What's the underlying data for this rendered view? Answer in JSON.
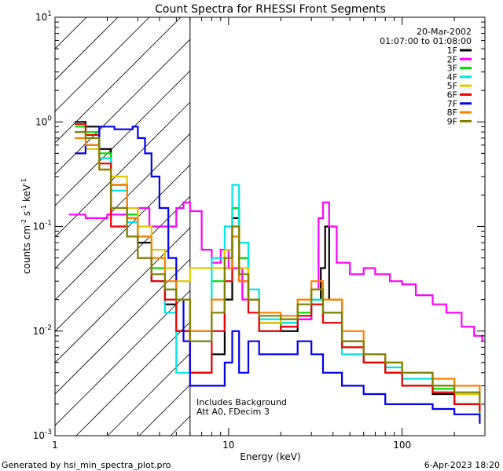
{
  "chart_data": {
    "type": "line",
    "title": "Count Spectra for RHESSI Front Segments",
    "xlabel": "Energy (keV)",
    "ylabel_main": "counts cm",
    "ylabel_exp1": "-2",
    "ylabel_mid": " s",
    "ylabel_exp2": "-1",
    "ylabel_end": " keV",
    "ylabel_exp3": "-1",
    "x_scale": "log",
    "y_scale": "log",
    "xlim": [
      1,
      300
    ],
    "ylim": [
      0.001,
      10
    ],
    "x_ticks": [
      {
        "value": 1,
        "label": "1"
      },
      {
        "value": 10,
        "label": "10"
      },
      {
        "value": 100,
        "label": "100"
      }
    ],
    "y_ticks": [
      {
        "value": 0.001,
        "base": "10",
        "exp": "-3"
      },
      {
        "value": 0.01,
        "base": "10",
        "exp": "-2"
      },
      {
        "value": 0.1,
        "base": "10",
        "exp": "-1"
      },
      {
        "value": 1,
        "base": "10",
        "exp": "0"
      },
      {
        "value": 10,
        "base": "10",
        "exp": "1"
      }
    ],
    "date": "20-Mar-2002",
    "time_range": "01:07:00 to 01:08:00",
    "hatched_region_kev": [
      1,
      6
    ],
    "annotations": [
      "Includes Background",
      "Att A0, FDecim 3"
    ],
    "legend_position": "top-right",
    "series": [
      {
        "name": "1F",
        "color": "#000000",
        "values": [
          [
            1.3,
            1.0
          ],
          [
            1.5,
            0.9
          ],
          [
            1.8,
            0.55
          ],
          [
            2.1,
            0.25
          ],
          [
            2.6,
            0.12
          ],
          [
            3.0,
            0.07
          ],
          [
            3.6,
            0.03
          ],
          [
            4.3,
            0.018
          ],
          [
            5.0,
            0.01
          ],
          [
            6.0,
            0.004
          ],
          [
            8.0,
            0.006
          ],
          [
            9.5,
            0.02
          ],
          [
            10.5,
            0.12
          ],
          [
            11.5,
            0.05
          ],
          [
            13,
            0.02
          ],
          [
            15,
            0.012
          ],
          [
            20,
            0.01
          ],
          [
            25,
            0.013
          ],
          [
            30,
            0.02
          ],
          [
            34,
            0.04
          ],
          [
            36,
            0.1
          ],
          [
            38,
            0.02
          ],
          [
            45,
            0.008
          ],
          [
            60,
            0.005
          ],
          [
            80,
            0.004
          ],
          [
            100,
            0.003
          ],
          [
            150,
            0.0025
          ],
          [
            200,
            0.002
          ],
          [
            280,
            0.0015
          ]
        ]
      },
      {
        "name": "2F",
        "color": "#ff00ff",
        "values": [
          [
            1.2,
            0.13
          ],
          [
            1.5,
            0.12
          ],
          [
            2.0,
            0.13
          ],
          [
            3.0,
            0.15
          ],
          [
            3.5,
            0.1
          ],
          [
            4.0,
            0.1
          ],
          [
            5.0,
            0.15
          ],
          [
            5.5,
            0.17
          ],
          [
            6.0,
            0.14
          ],
          [
            7.0,
            0.06
          ],
          [
            8.0,
            0.045
          ],
          [
            9.0,
            0.06
          ],
          [
            10,
            0.04
          ],
          [
            12,
            0.02
          ],
          [
            15,
            0.012
          ],
          [
            20,
            0.011
          ],
          [
            25,
            0.013
          ],
          [
            30,
            0.025
          ],
          [
            33,
            0.12
          ],
          [
            35,
            0.17
          ],
          [
            38,
            0.1
          ],
          [
            42,
            0.045
          ],
          [
            50,
            0.035
          ],
          [
            60,
            0.04
          ],
          [
            70,
            0.035
          ],
          [
            85,
            0.03
          ],
          [
            100,
            0.028
          ],
          [
            120,
            0.022
          ],
          [
            150,
            0.018
          ],
          [
            180,
            0.015
          ],
          [
            220,
            0.011
          ],
          [
            260,
            0.009
          ],
          [
            290,
            0.008
          ]
        ]
      },
      {
        "name": "3F",
        "color": "#00dd00",
        "values": [
          [
            1.3,
            0.9
          ],
          [
            1.5,
            0.8
          ],
          [
            1.8,
            0.5
          ],
          [
            2.1,
            0.25
          ],
          [
            2.6,
            0.13
          ],
          [
            3.0,
            0.08
          ],
          [
            3.6,
            0.04
          ],
          [
            4.3,
            0.025
          ],
          [
            5.0,
            0.02
          ],
          [
            6.0,
            0.01
          ],
          [
            8.0,
            0.03
          ],
          [
            9.5,
            0.06
          ],
          [
            10.5,
            0.15
          ],
          [
            11.5,
            0.05
          ],
          [
            13,
            0.02
          ],
          [
            15,
            0.01
          ],
          [
            20,
            0.012
          ],
          [
            25,
            0.015
          ],
          [
            30,
            0.02
          ],
          [
            35,
            0.015
          ],
          [
            45,
            0.007
          ],
          [
            60,
            0.005
          ],
          [
            80,
            0.004
          ],
          [
            100,
            0.003
          ],
          [
            150,
            0.0028
          ],
          [
            200,
            0.002
          ],
          [
            280,
            0.0016
          ]
        ]
      },
      {
        "name": "4F",
        "color": "#00e5e5",
        "values": [
          [
            1.3,
            0.8
          ],
          [
            1.5,
            0.7
          ],
          [
            1.8,
            0.45
          ],
          [
            2.1,
            0.22
          ],
          [
            2.6,
            0.11
          ],
          [
            3.0,
            0.08
          ],
          [
            3.6,
            0.05
          ],
          [
            4.3,
            0.015
          ],
          [
            5.0,
            0.004
          ],
          [
            6.0,
            0.008
          ],
          [
            8.0,
            0.05
          ],
          [
            9.5,
            0.1
          ],
          [
            10.5,
            0.25
          ],
          [
            11.5,
            0.07
          ],
          [
            13,
            0.025
          ],
          [
            15,
            0.013
          ],
          [
            20,
            0.012
          ],
          [
            25,
            0.014
          ],
          [
            30,
            0.02
          ],
          [
            35,
            0.012
          ],
          [
            45,
            0.006
          ],
          [
            60,
            0.005
          ],
          [
            80,
            0.0045
          ],
          [
            100,
            0.0035
          ],
          [
            150,
            0.003
          ],
          [
            200,
            0.0025
          ],
          [
            280,
            0.002
          ]
        ]
      },
      {
        "name": "5F",
        "color": "#e5c800",
        "values": [
          [
            1.3,
            0.5
          ],
          [
            1.5,
            0.55
          ],
          [
            1.8,
            0.35
          ],
          [
            2.1,
            0.3
          ],
          [
            2.6,
            0.15
          ],
          [
            3.0,
            0.1
          ],
          [
            3.6,
            0.06
          ],
          [
            4.3,
            0.04
          ],
          [
            5.0,
            0.03
          ],
          [
            6.0,
            0.04
          ],
          [
            8.0,
            0.04
          ],
          [
            9.5,
            0.06
          ],
          [
            10.5,
            0.1
          ],
          [
            11.5,
            0.04
          ],
          [
            13,
            0.02
          ],
          [
            15,
            0.012
          ],
          [
            20,
            0.013
          ],
          [
            25,
            0.02
          ],
          [
            30,
            0.025
          ],
          [
            35,
            0.02
          ],
          [
            45,
            0.008
          ],
          [
            60,
            0.006
          ],
          [
            80,
            0.005
          ],
          [
            100,
            0.004
          ],
          [
            150,
            0.003
          ],
          [
            200,
            0.0025
          ],
          [
            280,
            0.002
          ]
        ]
      },
      {
        "name": "6F",
        "color": "#ee0000",
        "values": [
          [
            1.3,
            0.95
          ],
          [
            1.5,
            0.75
          ],
          [
            1.8,
            0.4
          ],
          [
            2.1,
            0.1
          ],
          [
            2.6,
            0.08
          ],
          [
            3.0,
            0.05
          ],
          [
            3.6,
            0.03
          ],
          [
            4.3,
            0.02
          ],
          [
            5.0,
            0.01
          ],
          [
            6.0,
            0.004
          ],
          [
            8.0,
            0.01
          ],
          [
            9.5,
            0.03
          ],
          [
            10.5,
            0.08
          ],
          [
            11.5,
            0.03
          ],
          [
            13,
            0.015
          ],
          [
            15,
            0.01
          ],
          [
            20,
            0.011
          ],
          [
            25,
            0.014
          ],
          [
            30,
            0.018
          ],
          [
            35,
            0.012
          ],
          [
            45,
            0.007
          ],
          [
            60,
            0.005
          ],
          [
            80,
            0.004
          ],
          [
            100,
            0.003
          ],
          [
            150,
            0.0026
          ],
          [
            200,
            0.002
          ],
          [
            280,
            0.0017
          ]
        ]
      },
      {
        "name": "7F",
        "color": "#0000ee",
        "values": [
          [
            1.3,
            0.5
          ],
          [
            1.5,
            0.6
          ],
          [
            1.8,
            0.9
          ],
          [
            2.2,
            0.85
          ],
          [
            2.8,
            0.9
          ],
          [
            3.0,
            0.7
          ],
          [
            3.3,
            0.5
          ],
          [
            3.6,
            0.3
          ],
          [
            4.0,
            0.15
          ],
          [
            4.5,
            0.05
          ],
          [
            5.0,
            0.02
          ],
          [
            5.5,
            0.008
          ],
          [
            6.0,
            0.003
          ],
          [
            8.0,
            0.003
          ],
          [
            9.5,
            0.005
          ],
          [
            10.5,
            0.01
          ],
          [
            11.5,
            0.004
          ],
          [
            13,
            0.008
          ],
          [
            15,
            0.006
          ],
          [
            20,
            0.006
          ],
          [
            25,
            0.008
          ],
          [
            30,
            0.006
          ],
          [
            35,
            0.004
          ],
          [
            45,
            0.003
          ],
          [
            60,
            0.0025
          ],
          [
            80,
            0.002
          ],
          [
            100,
            0.002
          ],
          [
            150,
            0.0018
          ],
          [
            200,
            0.0016
          ],
          [
            280,
            0.0013
          ]
        ]
      },
      {
        "name": "8F",
        "color": "#ff8000",
        "values": [
          [
            1.3,
            0.7
          ],
          [
            1.5,
            0.6
          ],
          [
            1.8,
            0.35
          ],
          [
            2.1,
            0.25
          ],
          [
            2.6,
            0.12
          ],
          [
            3.0,
            0.08
          ],
          [
            3.6,
            0.05
          ],
          [
            4.3,
            0.03
          ],
          [
            5.0,
            0.02
          ],
          [
            6.0,
            0.01
          ],
          [
            8.0,
            0.02
          ],
          [
            9.5,
            0.04
          ],
          [
            10.5,
            0.08
          ],
          [
            11.5,
            0.03
          ],
          [
            13,
            0.02
          ],
          [
            15,
            0.015
          ],
          [
            20,
            0.014
          ],
          [
            25,
            0.02
          ],
          [
            30,
            0.03
          ],
          [
            35,
            0.02
          ],
          [
            45,
            0.01
          ],
          [
            60,
            0.006
          ],
          [
            80,
            0.005
          ],
          [
            100,
            0.004
          ],
          [
            150,
            0.0035
          ],
          [
            200,
            0.003
          ],
          [
            280,
            0.0022
          ]
        ]
      },
      {
        "name": "9F",
        "color": "#808000",
        "values": [
          [
            1.3,
            0.8
          ],
          [
            1.5,
            0.7
          ],
          [
            1.8,
            0.35
          ],
          [
            2.1,
            0.15
          ],
          [
            2.6,
            0.08
          ],
          [
            3.0,
            0.05
          ],
          [
            3.6,
            0.035
          ],
          [
            4.3,
            0.025
          ],
          [
            5.0,
            0.02
          ],
          [
            6.0,
            0.008
          ],
          [
            8.0,
            0.015
          ],
          [
            9.5,
            0.05
          ],
          [
            10.5,
            0.1
          ],
          [
            11.5,
            0.035
          ],
          [
            13,
            0.02
          ],
          [
            15,
            0.014
          ],
          [
            20,
            0.013
          ],
          [
            25,
            0.018
          ],
          [
            30,
            0.025
          ],
          [
            35,
            0.015
          ],
          [
            45,
            0.008
          ],
          [
            60,
            0.006
          ],
          [
            80,
            0.005
          ],
          [
            100,
            0.004
          ],
          [
            150,
            0.003
          ],
          [
            200,
            0.0026
          ],
          [
            280,
            0.002
          ]
        ]
      }
    ]
  },
  "footer": {
    "generated_by": "Generated by hsi_min_spectra_plot.pro",
    "generated_date": "6-Apr-2023 18:20"
  }
}
